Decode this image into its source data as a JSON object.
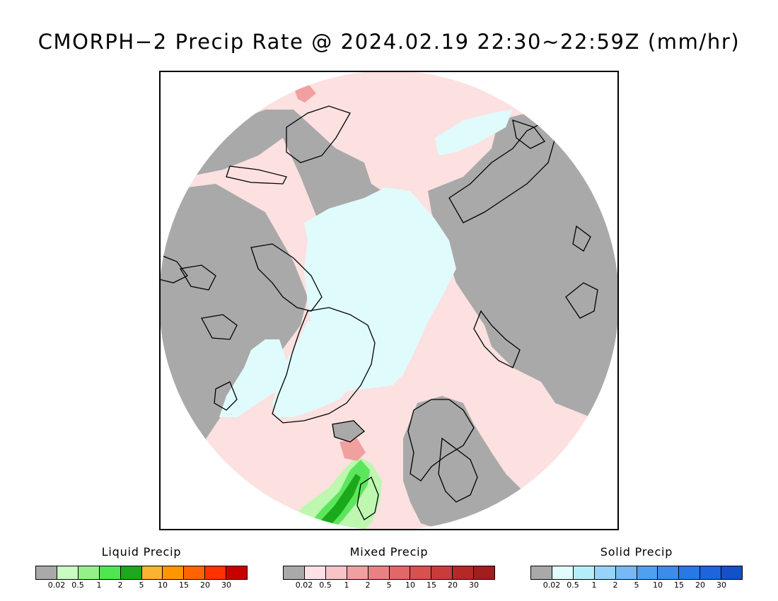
{
  "title": "CMORPH−2 Precip Rate @ 2024.02.19 22:30~22:59Z (mm/hr)",
  "map": {
    "projection": "polar-stereographic-north",
    "colors": {
      "land": "#a9a9a9",
      "no_precip_ocean": "#fde0e0",
      "solid_light": "#e0fbfc",
      "coastline": "#000000",
      "liquid_light": "#bdf7b0",
      "liquid_mid": "#5ce65c",
      "liquid_dark": "#1aa91a",
      "mixed_mid": "#f19f9f"
    }
  },
  "legends": [
    {
      "title": "Liquid Precip",
      "colors": [
        "#a9a9a9",
        "#c8fcc0",
        "#96f08a",
        "#50e650",
        "#1ea81e",
        "#fab432",
        "#ff9600",
        "#ff6400",
        "#ff3200",
        "#c80000"
      ],
      "ticks": [
        "0.02",
        "0.5",
        "1",
        "2",
        "5",
        "10",
        "15",
        "20",
        "30"
      ]
    },
    {
      "title": "Mixed Precip",
      "colors": [
        "#a9a9a9",
        "#fce0e6",
        "#f8c4c8",
        "#f0a0a0",
        "#e88282",
        "#e06868",
        "#d85050",
        "#c83c3c",
        "#b42828",
        "#a01e1e"
      ],
      "ticks": [
        "0.02",
        "0.5",
        "1",
        "2",
        "5",
        "10",
        "15",
        "20",
        "30"
      ]
    },
    {
      "title": "Solid Precip",
      "colors": [
        "#a9a9a9",
        "#e0fcfc",
        "#b4eefa",
        "#96d2fa",
        "#78b8f5",
        "#50a0f0",
        "#3c8ceb",
        "#2878e6",
        "#1e64dc",
        "#1450c8"
      ],
      "ticks": [
        "0.02",
        "0.5",
        "1",
        "2",
        "5",
        "10",
        "15",
        "20",
        "30"
      ]
    }
  ]
}
